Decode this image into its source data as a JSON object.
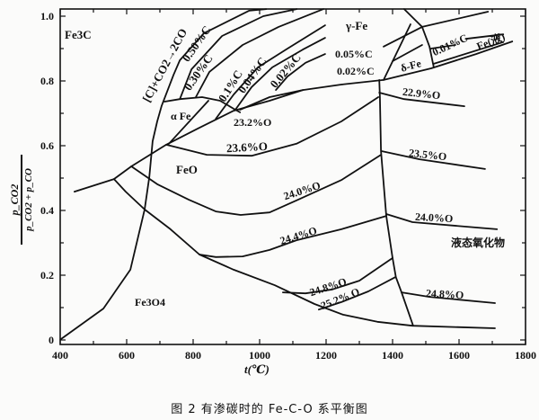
{
  "chart_data": {
    "type": "line",
    "title": "",
    "caption": "图 2   有渗碳时的 Fe-C-O 系平衡图",
    "xlabel": "t(℃)",
    "ylabel_num": "p_CO2",
    "ylabel_den": "p_CO2 + p_CO",
    "xlim": [
      400,
      1800
    ],
    "ylim": [
      0,
      1.02
    ],
    "x_ticks": [
      "400",
      "600",
      "800",
      "1000",
      "1200",
      "1400",
      "1600",
      "1800"
    ],
    "x_tick_values": [
      400,
      600,
      800,
      1000,
      1200,
      1400,
      1600,
      1800
    ],
    "y_ticks": [
      "0",
      "0.2",
      "0.4",
      "0.6",
      "0.8",
      "1.0"
    ],
    "y_tick_values": [
      0,
      0.2,
      0.4,
      0.6,
      0.8,
      1.0
    ],
    "grid": false,
    "series": [
      {
        "name": "graphite-boundary-[C]+CO2=2CO",
        "points": [
          [
            403,
            0.003
          ],
          [
            530,
            0.097
          ],
          [
            611,
            0.217
          ],
          [
            654,
            0.403
          ],
          [
            668,
            0.503
          ],
          [
            678,
            0.614
          ],
          [
            692,
            0.675
          ],
          [
            705,
            0.722
          ],
          [
            741,
            0.819
          ],
          [
            760,
            0.864
          ],
          [
            832,
            0.947
          ],
          [
            968,
            1.017
          ],
          [
            1020,
            1.022
          ]
        ]
      },
      {
        "name": "Fe3O4-left-boundary",
        "points": [
          [
            443,
            0.458
          ],
          [
            562,
            0.497
          ]
        ]
      },
      {
        "name": "Fe3O4-FeO-boundary",
        "points": [
          [
            562,
            0.497
          ],
          [
            597,
            0.458
          ],
          [
            654,
            0.403
          ],
          [
            732,
            0.342
          ],
          [
            819,
            0.264
          ],
          [
            922,
            0.217
          ],
          [
            1046,
            0.169
          ],
          [
            1165,
            0.111
          ],
          [
            1251,
            0.078
          ],
          [
            1354,
            0.056
          ],
          [
            1460,
            0.044
          ],
          [
            1708,
            0.036
          ]
        ]
      },
      {
        "name": "FeO-Fe-boundary",
        "points": [
          [
            562,
            0.497
          ],
          [
            614,
            0.536
          ],
          [
            719,
            0.603
          ],
          [
            814,
            0.653
          ],
          [
            922,
            0.708
          ],
          [
            1030,
            0.739
          ],
          [
            1130,
            0.772
          ],
          [
            1246,
            0.789
          ],
          [
            1373,
            0.803
          ],
          [
            1516,
            0.839
          ],
          [
            1651,
            0.883
          ],
          [
            1760,
            0.922
          ]
        ]
      },
      {
        "name": "24.0%O",
        "points": [
          [
            614,
            0.536
          ],
          [
            692,
            0.481
          ],
          [
            787,
            0.433
          ],
          [
            868,
            0.397
          ],
          [
            943,
            0.386
          ],
          [
            1030,
            0.394
          ],
          [
            1111,
            0.431
          ],
          [
            1246,
            0.494
          ],
          [
            1365,
            0.572
          ]
        ]
      },
      {
        "name": "23.6%O",
        "points": [
          [
            719,
            0.603
          ],
          [
            841,
            0.572
          ],
          [
            976,
            0.569
          ],
          [
            1111,
            0.606
          ],
          [
            1246,
            0.675
          ],
          [
            1357,
            0.75
          ]
        ]
      },
      {
        "name": "24.4%O",
        "points": [
          [
            819,
            0.264
          ],
          [
            868,
            0.256
          ],
          [
            949,
            0.258
          ],
          [
            1030,
            0.278
          ],
          [
            1111,
            0.308
          ],
          [
            1246,
            0.342
          ],
          [
            1381,
            0.383
          ]
        ]
      },
      {
        "name": "24.8%O",
        "points": [
          [
            1070,
            0.147
          ],
          [
            1138,
            0.144
          ],
          [
            1219,
            0.156
          ],
          [
            1300,
            0.183
          ],
          [
            1400,
            0.253
          ]
        ]
      },
      {
        "name": "25.2%O",
        "points": [
          [
            1178,
            0.094
          ],
          [
            1246,
            0.117
          ],
          [
            1327,
            0.15
          ],
          [
            1408,
            0.194
          ]
        ]
      },
      {
        "name": "liquid-oxide-boundary",
        "points": [
          [
            1360,
            0.803
          ],
          [
            1362,
            0.75
          ],
          [
            1365,
            0.583
          ],
          [
            1381,
            0.383
          ],
          [
            1400,
            0.253
          ],
          [
            1410,
            0.194
          ],
          [
            1427,
            0.147
          ],
          [
            1462,
            0.044
          ]
        ]
      },
      {
        "name": "liquid-22.9%O",
        "points": [
          [
            1360,
            0.764
          ],
          [
            1435,
            0.744
          ],
          [
            1616,
            0.722
          ]
        ]
      },
      {
        "name": "liquid-23.5%O",
        "points": [
          [
            1368,
            0.583
          ],
          [
            1481,
            0.558
          ],
          [
            1678,
            0.528
          ]
        ]
      },
      {
        "name": "liquid-24.0%O",
        "points": [
          [
            1381,
            0.389
          ],
          [
            1460,
            0.364
          ],
          [
            1714,
            0.342
          ]
        ]
      },
      {
        "name": "liquid-24.8%O",
        "points": [
          [
            1427,
            0.147
          ],
          [
            1511,
            0.133
          ],
          [
            1708,
            0.114
          ]
        ]
      },
      {
        "name": "alpha-gamma-boundary",
        "points": [
          [
            714,
            0.736
          ],
          [
            760,
            0.744
          ],
          [
            827,
            0.75
          ],
          [
            881,
            0.739
          ],
          [
            927,
            0.711
          ],
          [
            941,
            0.703
          ]
        ]
      },
      {
        "name": "alpha-inner-line",
        "points": [
          [
            846,
            0.739
          ],
          [
            727,
            0.606
          ]
        ]
      },
      {
        "name": "23.2%O-lens",
        "points": [
          [
            941,
            0.711
          ],
          [
            1030,
            0.75
          ],
          [
            1130,
            0.772
          ]
        ]
      },
      {
        "name": "0.50%C",
        "points": [
          [
            760,
            0.744
          ],
          [
            795,
            0.836
          ],
          [
            887,
            0.939
          ],
          [
            1011,
            1.0
          ],
          [
            1111,
            1.022
          ]
        ]
      },
      {
        "name": "0.30%C",
        "points": [
          [
            808,
            0.75
          ],
          [
            849,
            0.828
          ],
          [
            949,
            0.911
          ],
          [
            1057,
            0.967
          ],
          [
            1192,
            1.022
          ]
        ]
      },
      {
        "name": "0.1%C",
        "points": [
          [
            868,
            0.683
          ],
          [
            922,
            0.758
          ],
          [
            995,
            0.842
          ],
          [
            1084,
            0.9
          ],
          [
            1197,
            0.972
          ]
        ]
      },
      {
        "name": "0.04%C",
        "points": [
          [
            927,
            0.711
          ],
          [
            976,
            0.781
          ],
          [
            1038,
            0.842
          ],
          [
            1130,
            0.897
          ],
          [
            1197,
            0.933
          ]
        ]
      },
      {
        "name": "0.02%C",
        "points": [
          [
            1049,
            0.772
          ],
          [
            1084,
            0.814
          ],
          [
            1138,
            0.856
          ],
          [
            1197,
            0.883
          ]
        ]
      },
      {
        "name": "delta-left-boundary",
        "points": [
          [
            1373,
            0.803
          ],
          [
            1454,
            0.975
          ]
        ]
      },
      {
        "name": "delta-liquid-arc",
        "points": [
          [
            1435,
            1.022
          ],
          [
            1489,
            0.967
          ],
          [
            1511,
            0.906
          ],
          [
            1524,
            0.842
          ]
        ]
      },
      {
        "name": "0.05%C",
        "points": [
          [
            1373,
            0.906
          ],
          [
            1489,
            0.967
          ],
          [
            1687,
            1.014
          ]
        ]
      },
      {
        "name": "delta-0.02%C",
        "points": [
          [
            1400,
            0.861
          ],
          [
            1489,
            0.911
          ]
        ]
      },
      {
        "name": "0.01%C-short",
        "points": [
          [
            1516,
            0.9
          ],
          [
            1589,
            0.911
          ]
        ]
      },
      {
        "name": "0.01%C",
        "points": [
          [
            1524,
            0.853
          ],
          [
            1733,
            0.92
          ]
        ]
      },
      {
        "name": "0.01%C-upper",
        "points": [
          [
            1620,
            0.93
          ],
          [
            1733,
            0.944
          ]
        ]
      }
    ],
    "region_labels": {
      "fe3c": "Fe3C",
      "graphite": "[C]+CO2→2CO",
      "c050": "0.50%C",
      "c030": "0.30%C",
      "c01": "0.1%C",
      "c004": "0.04%C",
      "c002": "0.02%C",
      "gamma": "γ-Fe",
      "c005b": "0.05%C",
      "c002b": "0.02%C",
      "delta": "δ-Fe",
      "c001": "0.01%C",
      "fe_liquid": "Fe(液)",
      "alpha": "α Fe",
      "o232": "23.2%O",
      "o236": "23.6%O",
      "feo": "FeO",
      "o240": "24.0%O",
      "o244": "24.4%O",
      "o248": "24.8%O",
      "o252": "25.2% O",
      "o229": "22.9%O",
      "o235": "23.5%O",
      "o240b": "24.0%O",
      "liquid_oxide": "液态氧化物",
      "o248b": "24.8%O",
      "fe3o4": "Fe3O4"
    }
  }
}
